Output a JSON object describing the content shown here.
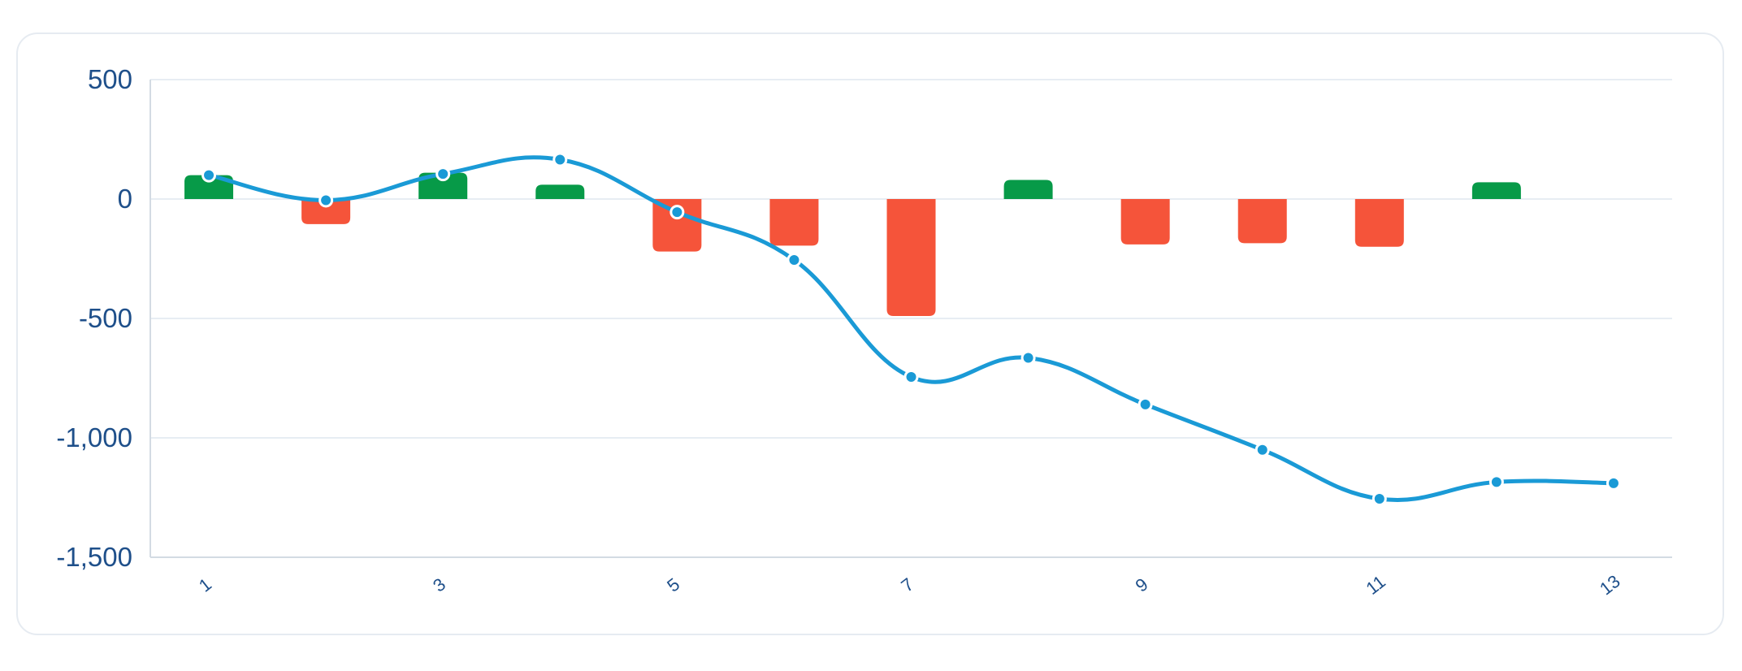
{
  "chart_data": {
    "type": "bar",
    "combo": "bar+line",
    "title": "",
    "xlabel": "",
    "ylabel": "",
    "ylim": [
      -1500,
      500
    ],
    "yticks": [
      500,
      0,
      -500,
      -1000,
      -1500
    ],
    "ytick_labels": [
      "500",
      "0",
      "-500",
      "-1,000",
      "-1,500"
    ],
    "categories": [
      1,
      2,
      3,
      4,
      5,
      6,
      7,
      8,
      9,
      10,
      11,
      12,
      13
    ],
    "xtick_labels": [
      "1",
      "3",
      "5",
      "7",
      "9",
      "11",
      "13"
    ],
    "xtick_values": [
      1,
      3,
      5,
      7,
      9,
      11,
      13
    ],
    "series": [
      {
        "type": "bar",
        "values": [
          100,
          -105,
          110,
          60,
          -220,
          -195,
          -490,
          80,
          -190,
          -185,
          -200,
          70,
          null
        ]
      },
      {
        "type": "line",
        "values": [
          100,
          -5,
          105,
          165,
          -55,
          -255,
          -745,
          -665,
          -860,
          -1050,
          -1255,
          -1185,
          -1190
        ]
      }
    ],
    "colors": {
      "positive": "#079A48",
      "negative": "#F5543A",
      "line": "#1A9AD6",
      "axis_text": "#1E4F8A"
    },
    "grid": true
  }
}
